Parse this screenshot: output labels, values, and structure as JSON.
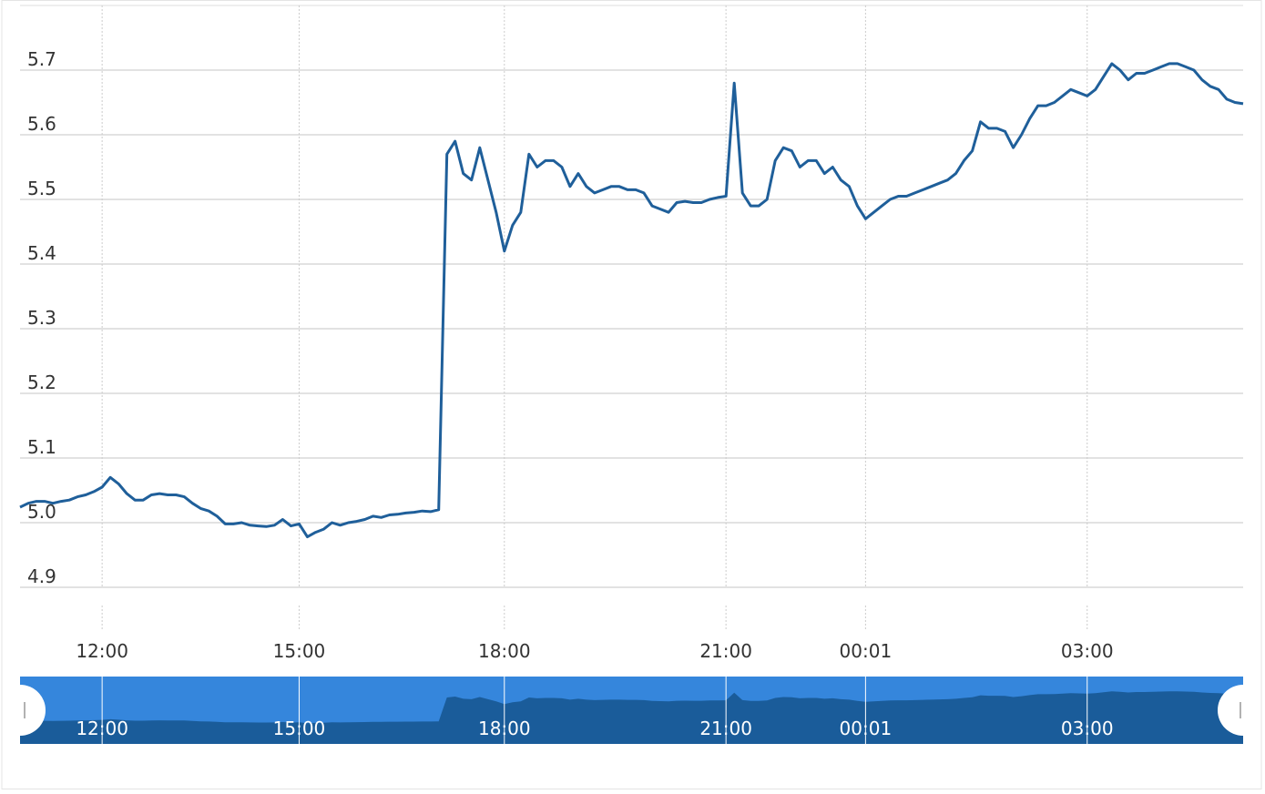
{
  "chart_data": {
    "type": "line",
    "categories": [
      null,
      null,
      null,
      null,
      null,
      null,
      null,
      null,
      null,
      null,
      "12:00",
      null,
      null,
      null,
      null,
      null,
      null,
      null,
      null,
      null,
      null,
      null,
      null,
      null,
      null,
      null,
      null,
      null,
      null,
      null,
      null,
      null,
      null,
      null,
      "15:00",
      null,
      null,
      null,
      null,
      null,
      null,
      null,
      null,
      null,
      null,
      null,
      null,
      null,
      null,
      null,
      null,
      null,
      null,
      null,
      null,
      null,
      null,
      null,
      null,
      "18:00",
      null,
      null,
      null,
      null,
      null,
      null,
      null,
      null,
      null,
      null,
      null,
      null,
      null,
      null,
      null,
      null,
      null,
      null,
      null,
      null,
      null,
      null,
      null,
      null,
      null,
      null,
      "21:00",
      null,
      null,
      null,
      null,
      null,
      null,
      null,
      null,
      null,
      null,
      null,
      null,
      null,
      null,
      null,
      null,
      "00:01",
      null,
      null,
      null,
      null,
      null,
      null,
      null,
      null,
      null,
      null,
      null,
      null,
      null,
      null,
      null,
      null,
      null,
      null,
      null,
      null,
      null,
      null,
      null,
      null,
      null,
      null,
      "03:00",
      null,
      null,
      null,
      null,
      null,
      null,
      null,
      null,
      null,
      null,
      null,
      null,
      null,
      null,
      null,
      null,
      null,
      null,
      null
    ],
    "series": [
      {
        "color": "#1f5f9a",
        "values": [
          5.024,
          5.03,
          5.033,
          5.033,
          5.03,
          5.033,
          5.035,
          5.04,
          5.043,
          5.048,
          5.055,
          5.07,
          5.06,
          5.045,
          5.035,
          5.035,
          5.043,
          5.045,
          5.043,
          5.043,
          5.04,
          5.03,
          5.022,
          5.018,
          5.01,
          4.998,
          4.998,
          5.0,
          4.996,
          4.995,
          4.994,
          4.996,
          5.005,
          4.995,
          4.998,
          4.978,
          4.985,
          4.99,
          5.0,
          4.996,
          5.0,
          5.002,
          5.005,
          5.01,
          5.008,
          5.012,
          5.013,
          5.015,
          5.016,
          5.018,
          5.017,
          5.02,
          5.57,
          5.59,
          5.54,
          5.53,
          5.58,
          5.53,
          5.48,
          5.42,
          5.46,
          5.48,
          5.57,
          5.55,
          5.56,
          5.56,
          5.55,
          5.52,
          5.54,
          5.52,
          5.51,
          5.515,
          5.52,
          5.52,
          5.515,
          5.515,
          5.51,
          5.49,
          5.485,
          5.48,
          5.495,
          5.497,
          5.495,
          5.495,
          5.5,
          5.503,
          5.505,
          5.68,
          5.51,
          5.49,
          5.49,
          5.5,
          5.56,
          5.58,
          5.575,
          5.55,
          5.56,
          5.56,
          5.54,
          5.55,
          5.53,
          5.52,
          5.49,
          5.47,
          5.48,
          5.49,
          5.5,
          5.505,
          5.505,
          5.51,
          5.515,
          5.52,
          5.525,
          5.53,
          5.54,
          5.56,
          5.575,
          5.62,
          5.61,
          5.61,
          5.605,
          5.58,
          5.6,
          5.625,
          5.645,
          5.645,
          5.65,
          5.66,
          5.67,
          5.665,
          5.66,
          5.67,
          5.69,
          5.71,
          5.7,
          5.685,
          5.695,
          5.695,
          5.7,
          5.705,
          5.71,
          5.71,
          5.705,
          5.7,
          5.685,
          5.675,
          5.67,
          5.655,
          5.65,
          5.648
        ]
      }
    ],
    "ylim": [
      4.9,
      5.8
    ],
    "yticks": [
      4.9,
      {
        "value": 5.0,
        "label": "5.0"
      },
      5.1,
      5.2,
      5.3,
      5.4,
      5.5,
      5.6,
      5.7
    ],
    "grid": true
  }
}
